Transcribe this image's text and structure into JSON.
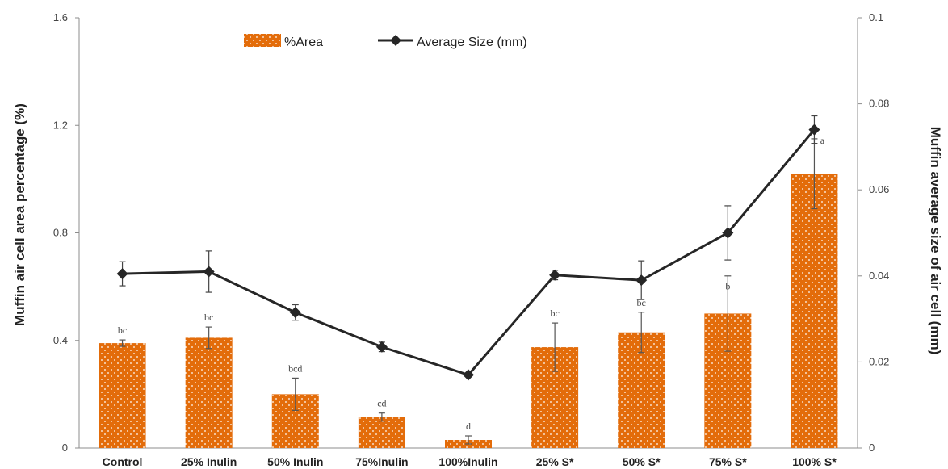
{
  "chart_data": {
    "type": "bar",
    "categories": [
      "Control",
      "25% Inulin",
      "50% Inulin",
      "75%Inulin",
      "100%Inulin",
      "25% S*",
      "50% S*",
      "75% S*",
      "100% S*"
    ],
    "series": [
      {
        "name": "%Area",
        "type": "bar",
        "axis": "left",
        "color": "#e36c0a",
        "values": [
          0.39,
          0.41,
          0.2,
          0.115,
          0.03,
          0.375,
          0.43,
          0.5,
          1.02
        ],
        "errors": [
          0.012,
          0.04,
          0.06,
          0.015,
          0.015,
          0.09,
          0.075,
          0.14,
          0.13
        ],
        "labels": [
          "bc",
          "bc",
          "bcd",
          "cd",
          "d",
          "bc",
          "bc",
          "b",
          "a"
        ]
      },
      {
        "name": "Average Size (mm)",
        "type": "line",
        "axis": "right",
        "color": "#262626",
        "values": [
          0.0405,
          0.041,
          0.0315,
          0.0235,
          0.017,
          0.0402,
          0.039,
          0.05,
          0.074
        ],
        "errors": [
          0.0028,
          0.0048,
          0.0018,
          0.0011,
          0.0004,
          0.0011,
          0.0045,
          0.0063,
          0.0032
        ]
      }
    ],
    "ylabel": "Muffin air cell area percentage (%)",
    "y2label": "Muffin average size of air cell (mm)",
    "ylim": [
      0,
      1.6
    ],
    "y2lim": [
      0,
      0.1
    ],
    "yticks": [
      "0",
      "0.4",
      "0.8",
      "1.2",
      "1.6"
    ],
    "y2ticks": [
      "0",
      "0.02",
      "0.04",
      "0.06",
      "0.08",
      "0.1"
    ],
    "legend_position": "top-center",
    "grid": false
  }
}
